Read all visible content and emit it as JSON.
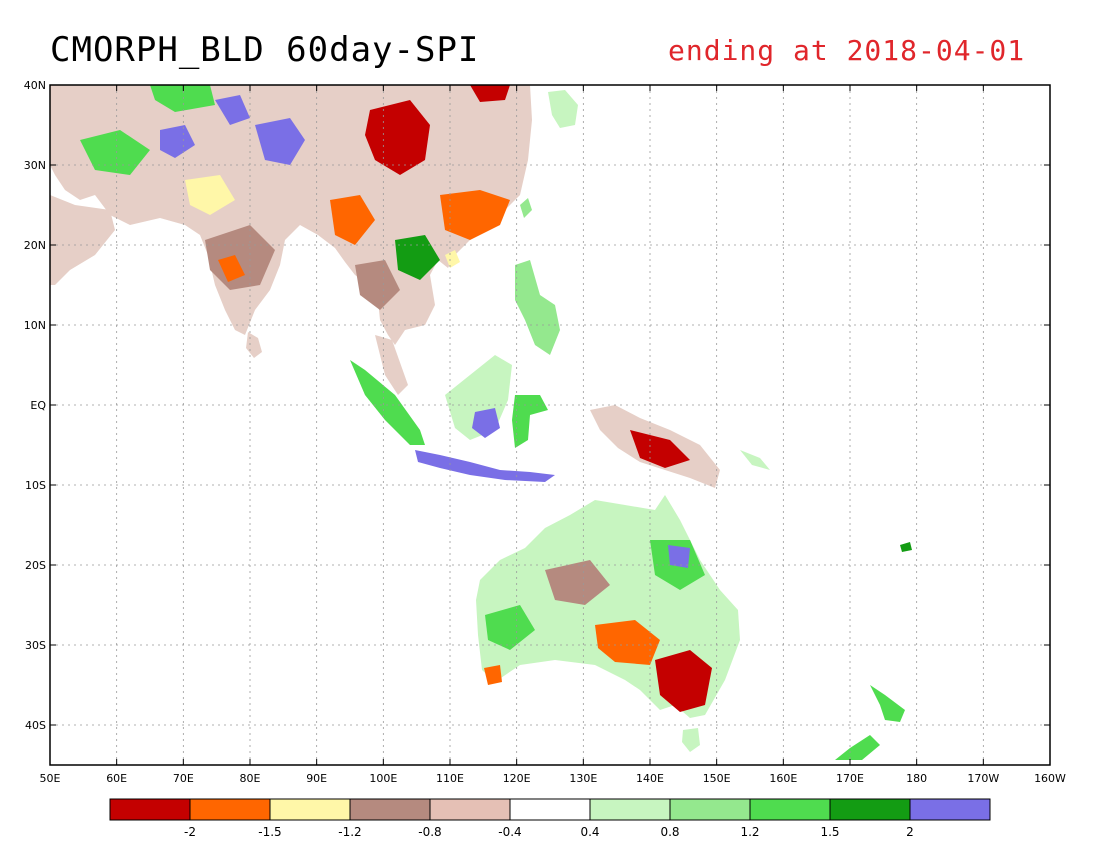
{
  "title": "CMORPH_BLD 60day-SPI",
  "subtitle": "ending at 2018-04-01",
  "subtitle_color": "#e0262b",
  "map": {
    "lon_range": [
      50,
      200
    ],
    "lat_range": [
      -45,
      40
    ],
    "grid": true,
    "x_ticks": [
      "50E",
      "60E",
      "70E",
      "80E",
      "90E",
      "100E",
      "110E",
      "120E",
      "130E",
      "140E",
      "150E",
      "160E",
      "170E",
      "180",
      "170W",
      "160W"
    ],
    "y_ticks": [
      "40N",
      "30N",
      "20N",
      "10N",
      "EQ",
      "10S",
      "20S",
      "30S",
      "40S"
    ]
  },
  "colorbar": {
    "colors": [
      "#c40000",
      "#ff6600",
      "#fff7a8",
      "#b58a7f",
      "#e5c0b5",
      "#ffffff",
      "#c7f5c0",
      "#94e88e",
      "#4fdc4f",
      "#139c13",
      "#7a6fe6"
    ],
    "labels": [
      "-2",
      "-1.5",
      "-1.2",
      "-0.8",
      "-0.4",
      "0.4",
      "0.8",
      "1.2",
      "1.5",
      "2"
    ]
  }
}
